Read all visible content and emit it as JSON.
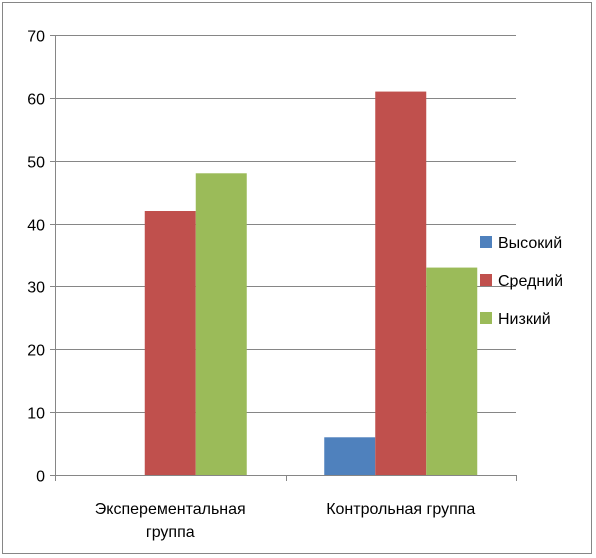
{
  "chart_data": {
    "type": "bar",
    "title": "",
    "xlabel": "",
    "ylabel": "",
    "categories": [
      [
        "Эксперементальная",
        "группа"
      ],
      [
        "Контрольная группа"
      ]
    ],
    "series": [
      {
        "name": "Высокий",
        "color": "#4f81bd",
        "values": [
          0,
          6
        ]
      },
      {
        "name": "Средний",
        "color": "#c0504d",
        "values": [
          42,
          61
        ]
      },
      {
        "name": "Низкий",
        "color": "#9bbb59",
        "values": [
          48,
          33
        ]
      }
    ],
    "ylim": [
      0,
      70
    ],
    "yticks": [
      0,
      10,
      20,
      30,
      40,
      50,
      60,
      70
    ],
    "grid": true,
    "legend_position": "right"
  }
}
